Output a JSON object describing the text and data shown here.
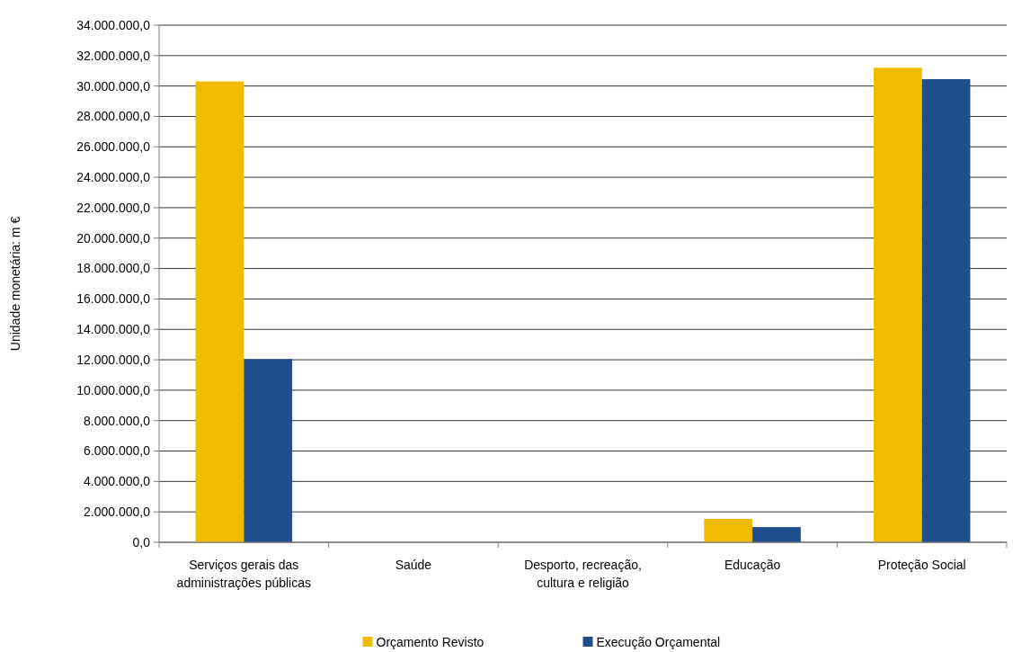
{
  "chart_data": {
    "type": "bar",
    "ylabel": "Unidade monetária: m €",
    "categories": [
      "Serviços gerais das administrações públicas",
      "Saúde",
      "Desporto, recreação, cultura e religião",
      "Educação",
      "Proteção Social"
    ],
    "series": [
      {
        "name": "Orçamento Revisto",
        "color": "#f0bc00",
        "values": [
          30300000,
          0,
          0,
          1540000,
          31200000
        ]
      },
      {
        "name": "Execução Orçamental",
        "color": "#1f4e8c",
        "values": [
          12050000,
          0,
          0,
          1000000,
          30450000
        ]
      }
    ],
    "ylim": [
      0,
      34000000
    ],
    "yticks": [
      {
        "value": 0,
        "label": "0,0"
      },
      {
        "value": 2000000,
        "label": "2.000.000,0"
      },
      {
        "value": 4000000,
        "label": "4.000.000,0"
      },
      {
        "value": 6000000,
        "label": "6.000.000,0"
      },
      {
        "value": 8000000,
        "label": "8.000.000,0"
      },
      {
        "value": 10000000,
        "label": "10.000.000,0"
      },
      {
        "value": 12000000,
        "label": "12.000.000,0"
      },
      {
        "value": 14000000,
        "label": "14.000.000,0"
      },
      {
        "value": 16000000,
        "label": "16.000.000,0"
      },
      {
        "value": 18000000,
        "label": "18.000.000,0"
      },
      {
        "value": 20000000,
        "label": "20.000.000,0"
      },
      {
        "value": 22000000,
        "label": "22.000.000,0"
      },
      {
        "value": 24000000,
        "label": "24.000.000,0"
      },
      {
        "value": 26000000,
        "label": "26.000.000,0"
      },
      {
        "value": 28000000,
        "label": "28.000.000,0"
      },
      {
        "value": 30000000,
        "label": "30.000.000,0"
      },
      {
        "value": 32000000,
        "label": "32.000.000,0"
      },
      {
        "value": 34000000,
        "label": "34.000.000,0"
      }
    ],
    "grid": "y",
    "legend": "bottom"
  }
}
